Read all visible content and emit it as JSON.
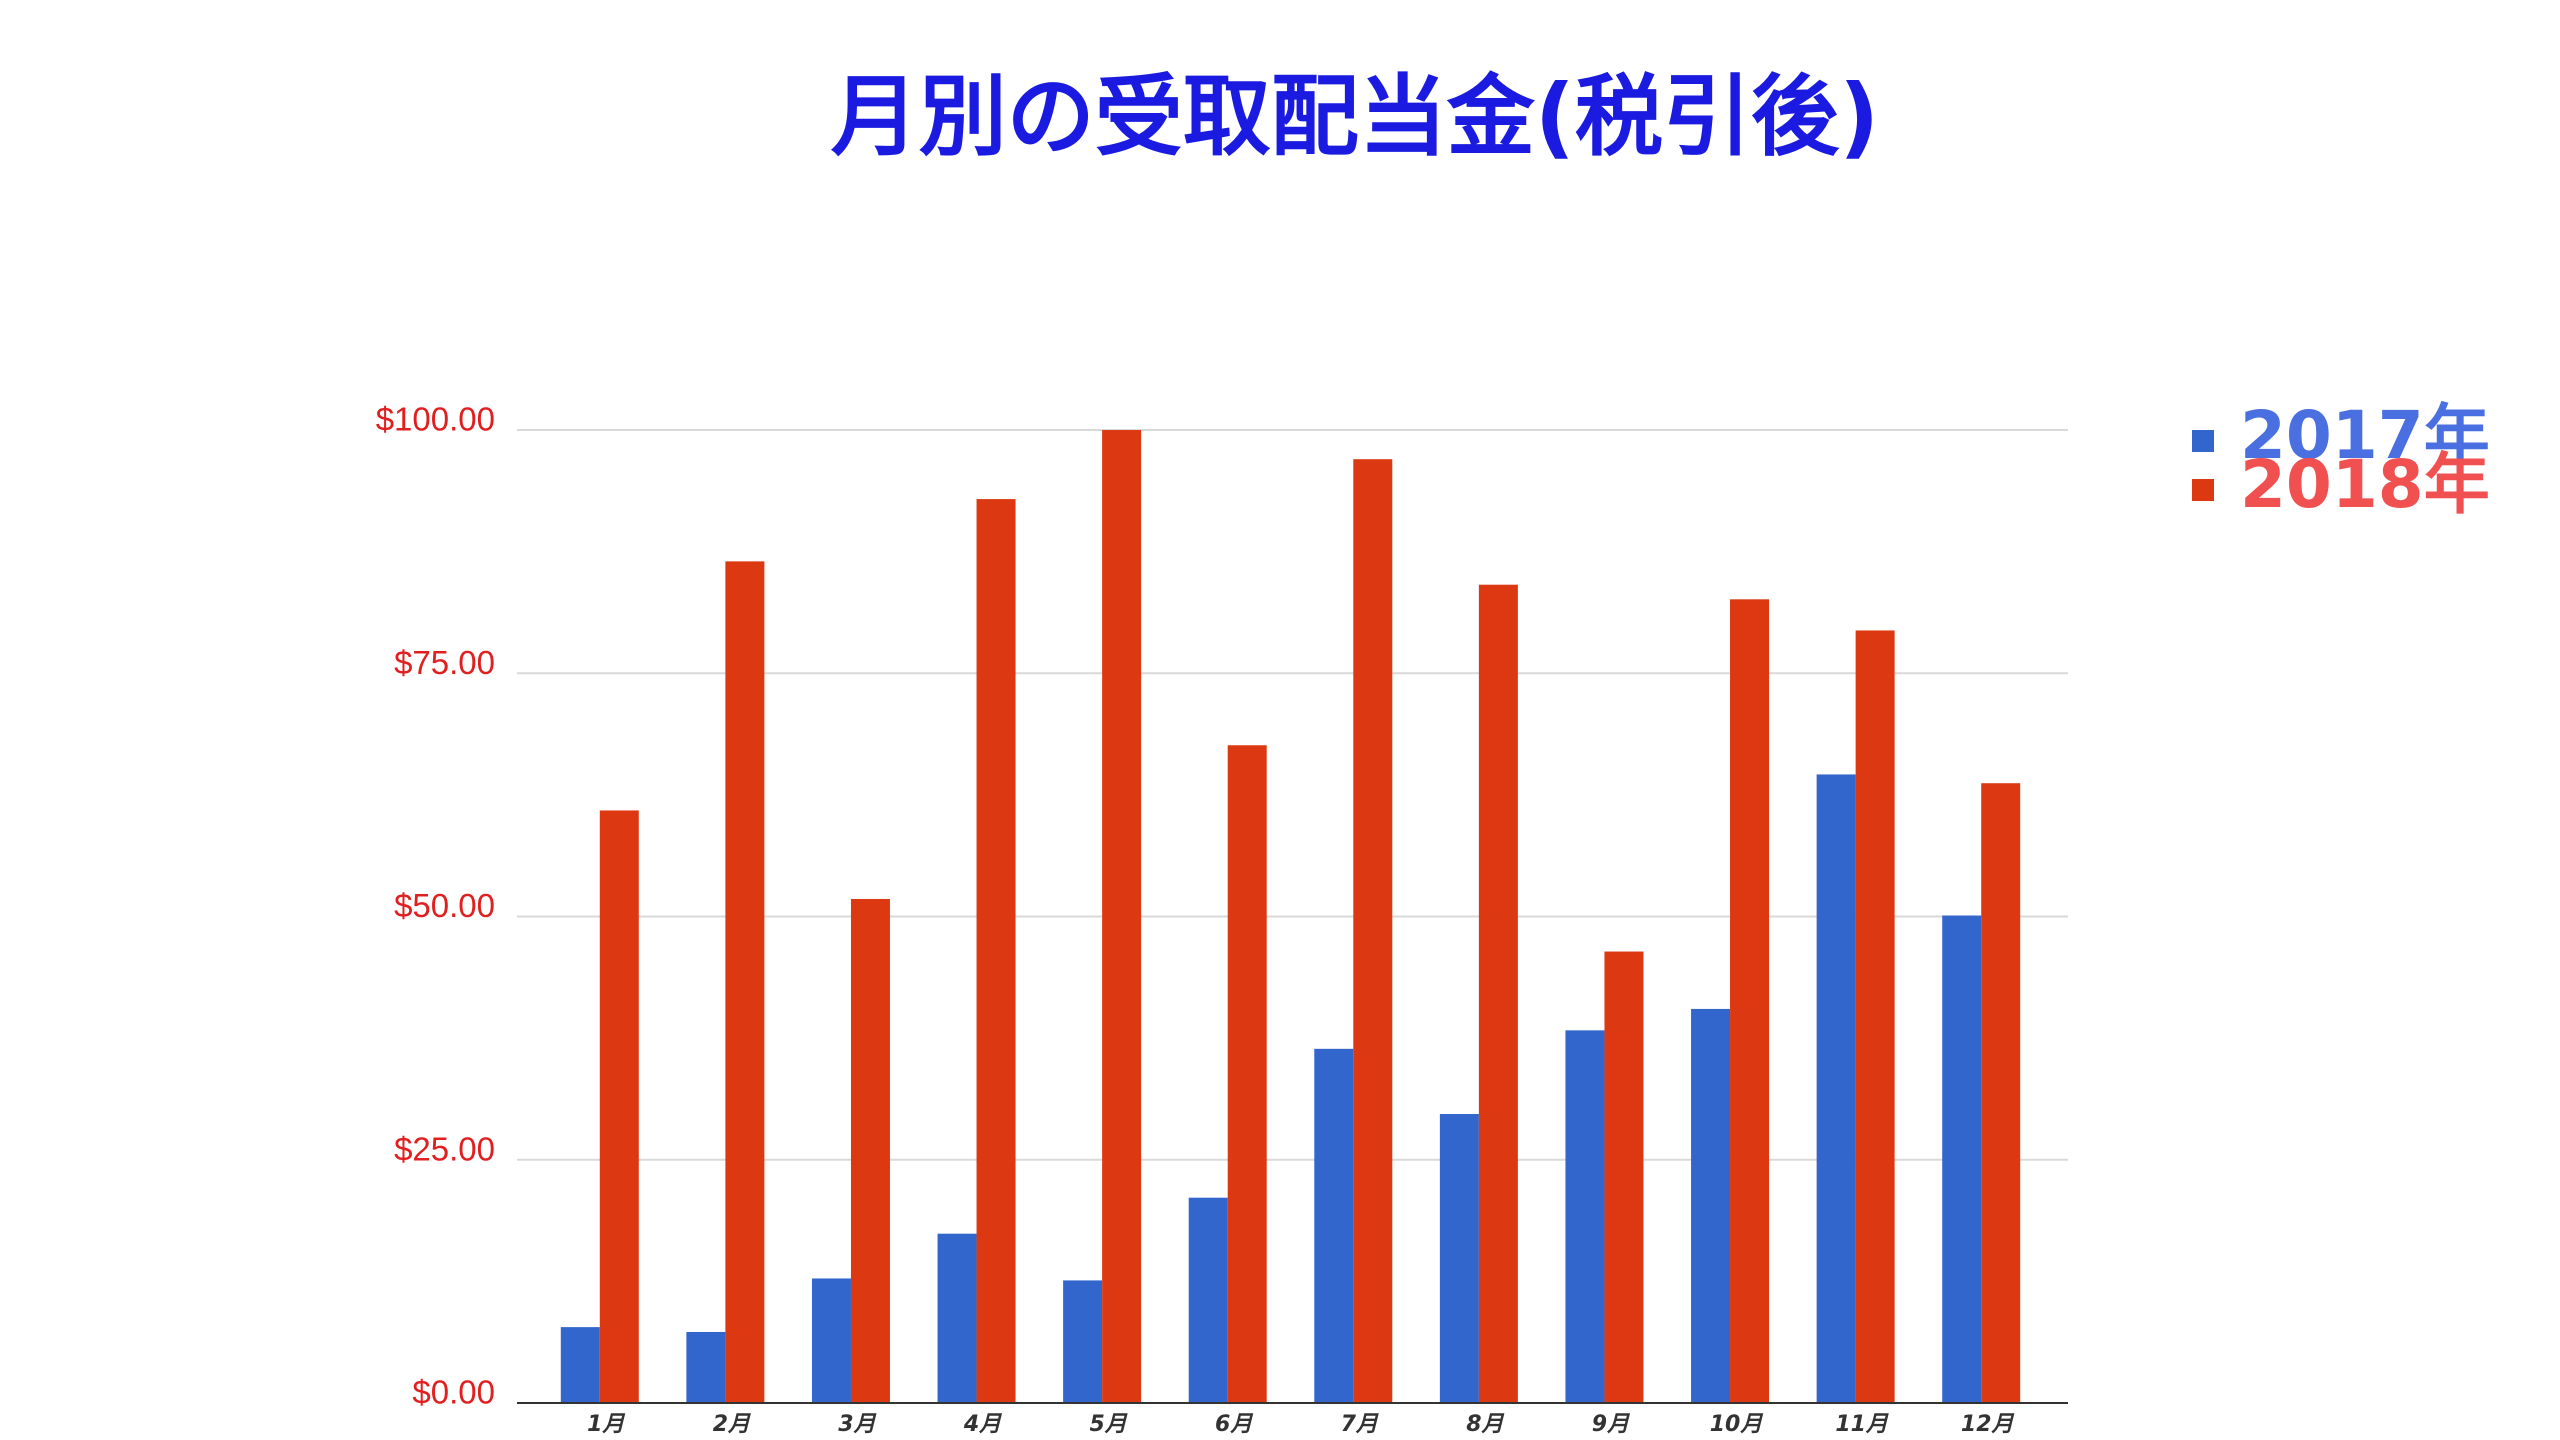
{
  "chart_data": {
    "type": "bar",
    "title": "月別の受取配当金(税引後)",
    "categories": [
      "1月",
      "2月",
      "3月",
      "4月",
      "5月",
      "6月",
      "7月",
      "8月",
      "9月",
      "10月",
      "11月",
      "12月"
    ],
    "series": [
      {
        "name": "2017年",
        "color": "#3366cc",
        "values": [
          7.8,
          7.3,
          12.8,
          17.4,
          12.6,
          21.1,
          36.4,
          29.7,
          38.3,
          40.5,
          64.6,
          50.1
        ]
      },
      {
        "name": "2018年",
        "color": "#dc3912",
        "values": [
          60.9,
          86.5,
          51.8,
          92.9,
          100,
          67.6,
          97.0,
          84.1,
          46.4,
          82.6,
          79.4,
          63.7
        ]
      }
    ],
    "ylim": [
      0,
      100
    ],
    "yticks": [
      {
        "value": 0,
        "label": "$0.00"
      },
      {
        "value": 25,
        "label": "$25.00"
      },
      {
        "value": 50,
        "label": "$50.00"
      },
      {
        "value": 75,
        "label": "$75.00"
      },
      {
        "value": 100,
        "label": "$100.00"
      }
    ],
    "grid": true,
    "legend": "top-right"
  }
}
